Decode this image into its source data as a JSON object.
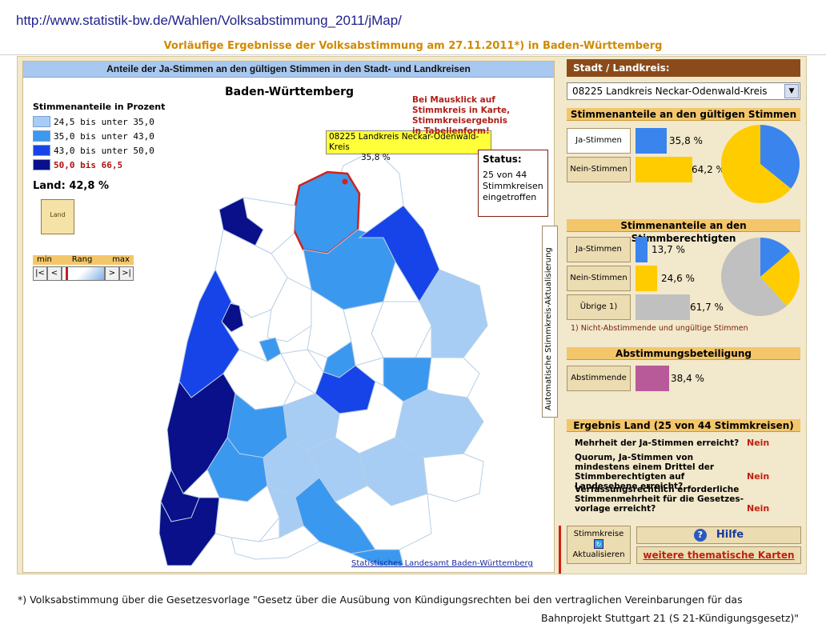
{
  "header": {
    "url": "http://www.statistik-bw.de/Wahlen/Volksabstimmung_2011/jMap/",
    "subtitle": "Vorläufige Ergebnisse der Volksabstimmung am 27.11.2011*) in Baden-Württemberg"
  },
  "map_panel": {
    "title": "Anteile der Ja-Stimmen an den gültigen Stimmen in den Stadt- und Landkreisen",
    "map_title": "Baden-Württemberg",
    "legend_title": "Stimmenanteile in Prozent",
    "legend": [
      {
        "label": "24,5  bis unter  35,0",
        "color": "#a7cdf4"
      },
      {
        "label": "35,0  bis unter  43,0",
        "color": "#3b98ef"
      },
      {
        "label": "43,0  bis unter  50,0",
        "color": "#1744e8"
      },
      {
        "label": "50,0  bis   66,5",
        "color": "#0a0f8a"
      }
    ],
    "land_label": "Land:  42,8 %",
    "land_icon_label": "Land",
    "rang": {
      "min": "min",
      "label": "Rang",
      "max": "max"
    },
    "rang_buttons": {
      "first": "|<",
      "prev": "<",
      "next": ">",
      "last": ">|"
    },
    "hint": "Bei Mausklick auf Stimmkreis in Karte, Stimmkreisergebnis in Tabellenform!",
    "status_title": "Status:",
    "status_text": "25 von 44 Stimmkreisen eingetroffen",
    "tooltip_name": "08225 Landkreis Neckar-Odenwald-Kreis",
    "tooltip_value": "35,8 %",
    "vertical_label": "Automatische Stimmkreis-Aktualisierung",
    "source_link": "Statistisches Landesamt Baden-Württemberg"
  },
  "right_panel": {
    "header": "Stadt / Landkreis:",
    "selected_kreis": "08225 Landkreis Neckar-Odenwald-Kreis",
    "section_gueltig": "Stimmenanteile an den gültigen Stimmen",
    "section_berechtigt": "Stimmenanteile an den Stimmberechtigten",
    "section_beteiligung": "Abstimmungsbeteiligung",
    "section_ergebnis": "Ergebnis Land  (25 von 44 Stimmkreisen)",
    "gueltig": [
      {
        "label": "Ja-Stimmen",
        "value": "35,8 %",
        "share": 35.8,
        "color": "#3a84ee"
      },
      {
        "label": "Nein-Stimmen",
        "value": "64,2 %",
        "share": 64.2,
        "color": "#ffcc00"
      }
    ],
    "berechtigt": [
      {
        "label": "Ja-Stimmen",
        "value": "13,7 %",
        "share": 13.7,
        "color": "#3a84ee"
      },
      {
        "label": "Nein-Stimmen",
        "value": "24,6 %",
        "share": 24.6,
        "color": "#ffcc00"
      },
      {
        "label": "Übrige 1)",
        "value": "61,7 %",
        "share": 61.7,
        "color": "#c0c0c0"
      }
    ],
    "note": "1) Nicht-Abstimmende und ungültige Stimmen",
    "beteiligung": {
      "label": "Abstimmende",
      "value": "38,4 %",
      "share": 38.4,
      "color": "#b85a9a"
    },
    "ergebnis": [
      {
        "question": "Mehrheit der Ja-Stimmen erreicht?",
        "answer": "Nein"
      },
      {
        "question": "Quorum, Ja-Stimmen von mindestens einem Drittel der Stimmberechtigten auf Landesebene erreicht?",
        "answer": "Nein"
      },
      {
        "question": "Verfassungsrechtlich erforderliche Stimmenmehrheit für die Gesetzes-vorlage erreicht?",
        "answer": "Nein"
      }
    ],
    "aktualisieren_line1": "Stimmkreise",
    "aktualisieren_line2": "Aktualisieren",
    "hilfe": "Hilfe",
    "karten": "weitere thematische Karten"
  },
  "footer": {
    "line1": "*) Volksabstimmung über die Gesetzesvorlage \"Gesetz über die Ausübung von Kündigungsrechten bei den vertraglichen Vereinbarungen für das",
    "line2": "Bahnprojekt Stuttgart 21 (S 21-Kündigungsgesetz)\""
  }
}
